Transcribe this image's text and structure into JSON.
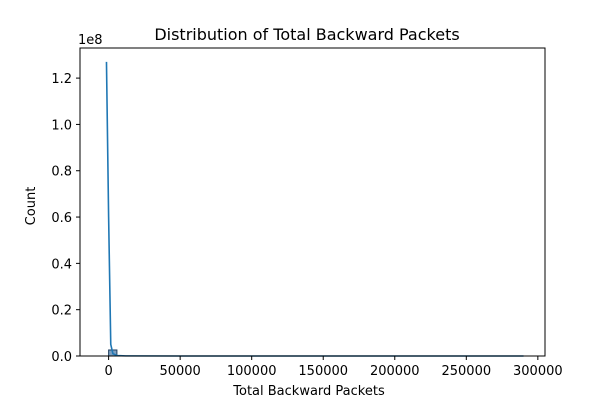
{
  "chart_data": {
    "type": "histogram",
    "title": "Distribution of  Total Backward Packets",
    "xlabel": "Total Backward Packets",
    "ylabel": "Count",
    "y_offset_label": "1e8",
    "xlim": [
      -20000,
      305000
    ],
    "ylim": [
      0,
      133000000.0
    ],
    "x_ticks": [
      0,
      50000,
      100000,
      150000,
      200000,
      250000,
      300000
    ],
    "x_tick_labels": [
      "0",
      "50000",
      "100000",
      "150000",
      "200000",
      "250000",
      "300000"
    ],
    "y_ticks": [
      0,
      20000000.0,
      40000000.0,
      60000000.0,
      80000000.0,
      100000000.0,
      120000000.0
    ],
    "y_tick_labels": [
      "0.0",
      "0.2",
      "0.4",
      "0.6",
      "0.8",
      "1.0",
      "1.2"
    ],
    "bars": [
      {
        "x0": 0,
        "x1": 5800,
        "count": 2600000
      }
    ],
    "kde_line": {
      "x": [
        -1500,
        0,
        1500,
        3000,
        6000,
        12000,
        50000,
        100000,
        150000,
        200000,
        250000,
        290000
      ],
      "y": [
        127000000.0,
        60000000.0,
        5000000.0,
        1000000.0,
        200000.0,
        50000.0,
        0,
        0,
        0,
        0,
        0,
        0
      ]
    },
    "grid": false,
    "colors": {
      "bar_fill": "#7c9fc0",
      "bar_edge": "#1f3f5f",
      "line": "#1f77b4",
      "axes": "#000000"
    }
  }
}
